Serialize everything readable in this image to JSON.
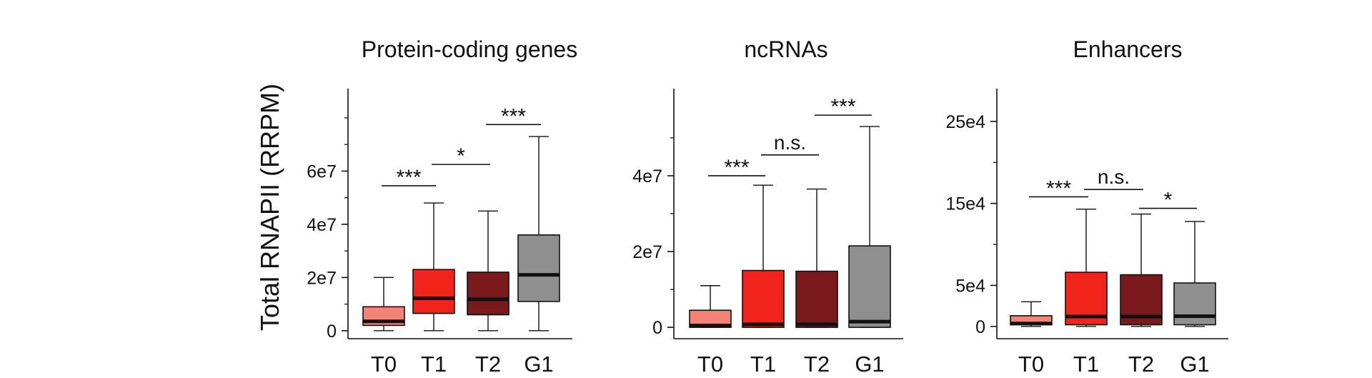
{
  "figure": {
    "ylabel": "Total RNAPII (RRPM)"
  },
  "chart_data": [
    {
      "type": "box",
      "title": "Protein-coding genes",
      "categories": [
        "T0",
        "T1",
        "T2",
        "G1"
      ],
      "ylim": [
        -3000000.0,
        91000000.0
      ],
      "yticks": [
        0,
        20000000.0,
        40000000.0,
        60000000.0
      ],
      "yticklabels": [
        "0",
        "2e7",
        "4e7",
        "6e7"
      ],
      "minor_ticks": [
        10000000.0,
        30000000.0,
        50000000.0,
        70000000.0,
        80000000.0
      ],
      "boxes": [
        {
          "whisker_low": 0.0,
          "q1": 2000000.0,
          "median": 3500000.0,
          "q3": 9000000.0,
          "whisker_high": 20000000.0
        },
        {
          "whisker_low": 0.0,
          "q1": 6500000.0,
          "median": 12200000.0,
          "q3": 23000000.0,
          "whisker_high": 48000000.0
        },
        {
          "whisker_low": 0.0,
          "q1": 6000000.0,
          "median": 11800000.0,
          "q3": 22000000.0,
          "whisker_high": 45000000.0
        },
        {
          "whisker_low": 0.0,
          "q1": 11000000.0,
          "median": 21000000.0,
          "q3": 36000000.0,
          "whisker_high": 73000000.0
        }
      ],
      "significance": [
        {
          "from": 0,
          "to": 1,
          "y": 54500000.0,
          "label": "***"
        },
        {
          "from": 1,
          "to": 2,
          "y": 62500000.0,
          "label": "*"
        },
        {
          "from": 2,
          "to": 3,
          "y": 77500000.0,
          "label": "***"
        }
      ]
    },
    {
      "type": "box",
      "title": "ncRNAs",
      "categories": [
        "T0",
        "T1",
        "T2",
        "G1"
      ],
      "ylim": [
        -3000000.0,
        63000000.0
      ],
      "yticks": [
        0,
        20000000.0,
        40000000.0
      ],
      "yticklabels": [
        "0",
        "2e7",
        "4e7"
      ],
      "minor_ticks": [
        10000000.0,
        30000000.0,
        50000000.0
      ],
      "boxes": [
        {
          "whisker_low": 0.0,
          "q1": 0.0,
          "median": 500000.0,
          "q3": 4500000.0,
          "whisker_high": 11000000.0
        },
        {
          "whisker_low": 0.0,
          "q1": 0.0,
          "median": 800000.0,
          "q3": 15000000.0,
          "whisker_high": 37500000.0
        },
        {
          "whisker_low": 0.0,
          "q1": 0.0,
          "median": 800000.0,
          "q3": 14800000.0,
          "whisker_high": 36500000.0
        },
        {
          "whisker_low": 0.0,
          "q1": 0.0,
          "median": 1500000.0,
          "q3": 21500000.0,
          "whisker_high": 53000000.0
        }
      ],
      "significance": [
        {
          "from": 0,
          "to": 1,
          "y": 40000000.0,
          "label": "***"
        },
        {
          "from": 1,
          "to": 2,
          "y": 45500000.0,
          "label": "n.s."
        },
        {
          "from": 2,
          "to": 3,
          "y": 56000000.0,
          "label": "***"
        }
      ]
    },
    {
      "type": "box",
      "title": "Enhancers",
      "categories": [
        "T0",
        "T1",
        "T2",
        "G1"
      ],
      "ylim": [
        -15000.0,
        290000.0
      ],
      "yticks": [
        0,
        50000.0,
        150000.0,
        250000.0
      ],
      "yticklabels": [
        "0",
        "5e4",
        "15e4",
        "25e4"
      ],
      "minor_ticks": [
        100000.0,
        200000.0
      ],
      "boxes": [
        {
          "whisker_low": 0.0,
          "q1": 2000.0,
          "median": 3500.0,
          "q3": 13000.0,
          "whisker_high": 30000.0
        },
        {
          "whisker_low": 0.0,
          "q1": 2000.0,
          "median": 12000.0,
          "q3": 66000.0,
          "whisker_high": 143000.0
        },
        {
          "whisker_low": 0.0,
          "q1": 2000.0,
          "median": 12000.0,
          "q3": 63000.0,
          "whisker_high": 137000.0
        },
        {
          "whisker_low": 0.0,
          "q1": 2000.0,
          "median": 12500.0,
          "q3": 53000.0,
          "whisker_high": 128000.0
        }
      ],
      "significance": [
        {
          "from": 0,
          "to": 1,
          "y": 158000.0,
          "label": "***"
        },
        {
          "from": 1,
          "to": 2,
          "y": 167000.0,
          "label": "n.s."
        },
        {
          "from": 2,
          "to": 3,
          "y": 144000.0,
          "label": "*"
        }
      ]
    }
  ],
  "colors": {
    "box_fills": [
      "#f38376",
      "#f2231b",
      "#7b1a1d",
      "#8f8f8f"
    ],
    "stroke": "#111111"
  }
}
